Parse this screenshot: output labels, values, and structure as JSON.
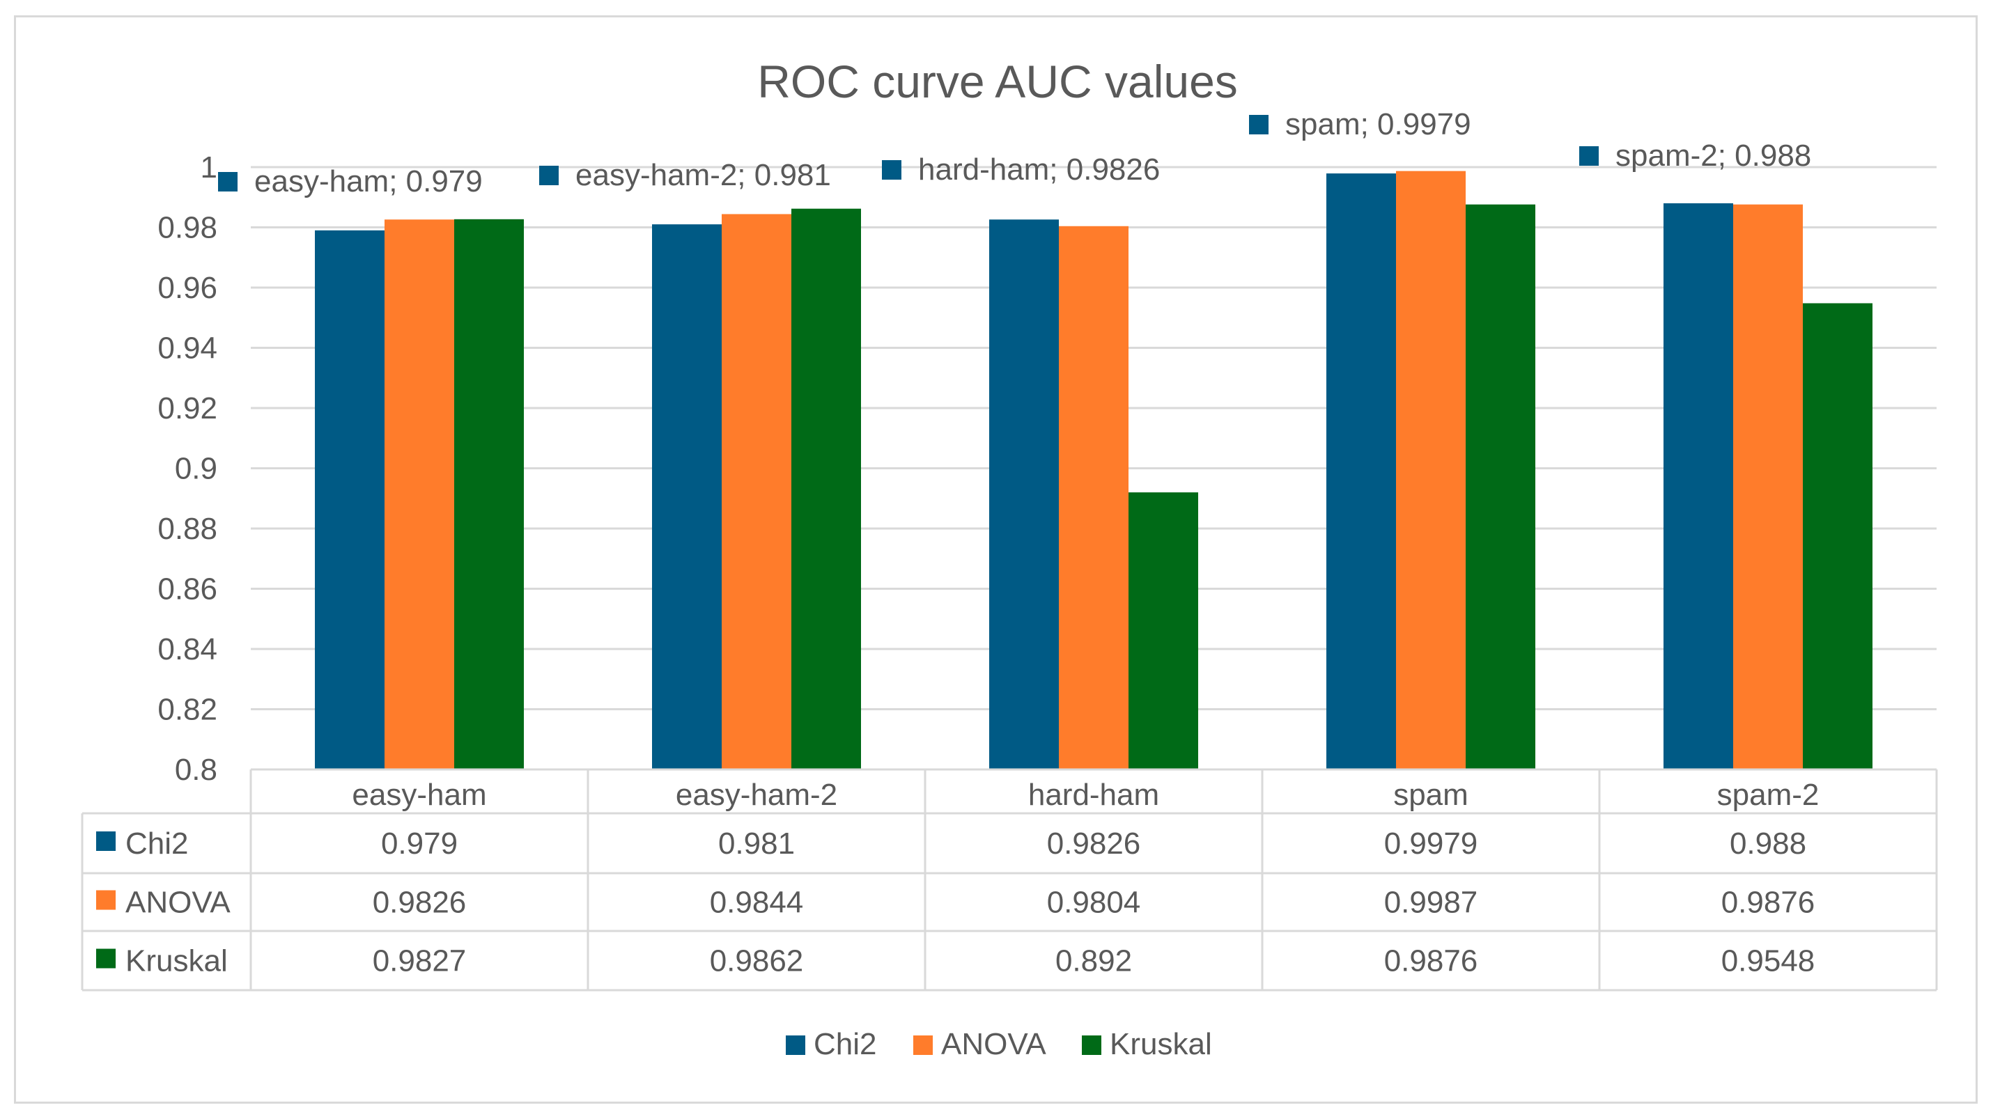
{
  "chart_data": {
    "type": "bar",
    "title": "ROC curve AUC values",
    "categories": [
      "easy-ham",
      "easy-ham-2",
      "hard-ham",
      "spam",
      "spam-2"
    ],
    "series": [
      {
        "name": "Chi2",
        "color": "#005A85",
        "values": [
          0.979,
          0.981,
          0.9826,
          0.9979,
          0.988
        ]
      },
      {
        "name": "ANOVA",
        "color": "#FF7C2B",
        "values": [
          0.9826,
          0.9844,
          0.9804,
          0.9987,
          0.9876
        ]
      },
      {
        "name": "Kruskal",
        "color": "#006A17",
        "values": [
          0.9827,
          0.9862,
          0.892,
          0.9876,
          0.9548
        ]
      }
    ],
    "ylim": [
      0.8,
      1
    ],
    "yticks": [
      0.8,
      0.82,
      0.84,
      0.86,
      0.88,
      0.9,
      0.92,
      0.94,
      0.96,
      0.98,
      1
    ],
    "ytick_labels": [
      "0.8",
      "0.82",
      "0.84",
      "0.86",
      "0.88",
      "0.9",
      "0.92",
      "0.94",
      "0.96",
      "0.98",
      "1"
    ],
    "grid": true,
    "data_table": {
      "rows": [
        {
          "series": "Chi2",
          "cells": [
            "0.979",
            "0.981",
            "0.9826",
            "0.9979",
            "0.988"
          ]
        },
        {
          "series": "ANOVA",
          "cells": [
            "0.9826",
            "0.9844",
            "0.9804",
            "0.9987",
            "0.9876"
          ]
        },
        {
          "series": "Kruskal",
          "cells": [
            "0.9827",
            "0.9862",
            "0.892",
            "0.9876",
            "0.9548"
          ]
        }
      ]
    },
    "annotations": [
      {
        "text": "easy-ham; 0.979",
        "category": "easy-ham",
        "series": "Chi2"
      },
      {
        "text": "easy-ham-2; 0.981",
        "category": "easy-ham-2",
        "series": "Chi2"
      },
      {
        "text": "hard-ham; 0.9826",
        "category": "hard-ham",
        "series": "Chi2"
      },
      {
        "text": "spam; 0.9979",
        "category": "spam",
        "series": "Chi2"
      },
      {
        "text": "spam-2; 0.988",
        "category": "spam-2",
        "series": "Chi2"
      }
    ],
    "legend": {
      "position": "bottom",
      "items": [
        "Chi2",
        "ANOVA",
        "Kruskal"
      ]
    }
  }
}
